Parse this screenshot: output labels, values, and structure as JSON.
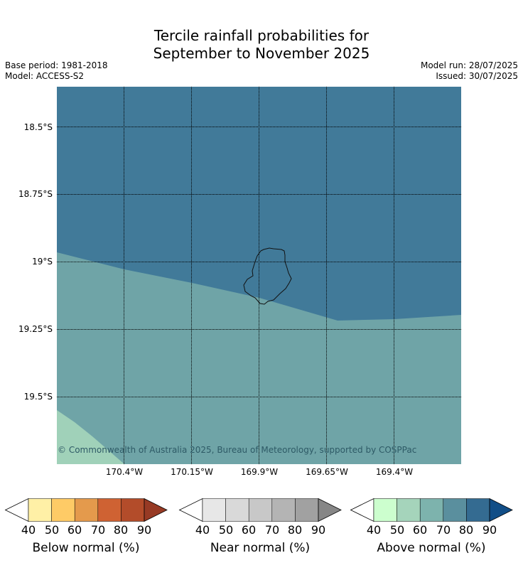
{
  "title": {
    "line1": "Tercile rainfall probabilities for",
    "line2": "September to November 2025"
  },
  "meta": {
    "base_period": "Base period: 1981-2018",
    "model": "Model: ACCESS-S2",
    "model_run": "Model run: 28/07/2025",
    "issued": "Issued: 30/07/2025"
  },
  "map": {
    "lat_labels": [
      "18.5°S",
      "18.75°S",
      "19°S",
      "19.25°S",
      "19.5°S"
    ],
    "lon_labels": [
      "170.4°W",
      "170.15°W",
      "169.9°W",
      "169.65°W",
      "169.4°W"
    ],
    "regions": [
      {
        "name": "above-normal-70-80",
        "color": "#417a99"
      },
      {
        "name": "above-normal-60-70",
        "color": "#6fa4a7"
      },
      {
        "name": "above-normal-50-60",
        "color": "#a0d1b9"
      }
    ],
    "copyright": "© Commonwealth of Australia 2025, Bureau of Meteorology, supported by COSPPac"
  },
  "colorbars": [
    {
      "title": "Below normal (%)",
      "ticks": [
        "40",
        "50",
        "60",
        "70",
        "80",
        "90"
      ],
      "colors": [
        "#fff0a6",
        "#fecb66",
        "#e49a4c",
        "#cf6233",
        "#b34c2a"
      ],
      "end_color": "#973a24"
    },
    {
      "title": "Near normal (%)",
      "ticks": [
        "40",
        "50",
        "60",
        "70",
        "80",
        "90"
      ],
      "colors": [
        "#e7e7e7",
        "#d9d9d9",
        "#c8c8c8",
        "#b4b4b4",
        "#a1a1a1"
      ],
      "end_color": "#868686"
    },
    {
      "title": "Above normal (%)",
      "ticks": [
        "40",
        "50",
        "60",
        "70",
        "80",
        "90"
      ],
      "colors": [
        "#ccfece",
        "#a5d4bb",
        "#7db3ad",
        "#5a8f9e",
        "#346b91"
      ],
      "end_color": "#114e87"
    }
  ]
}
